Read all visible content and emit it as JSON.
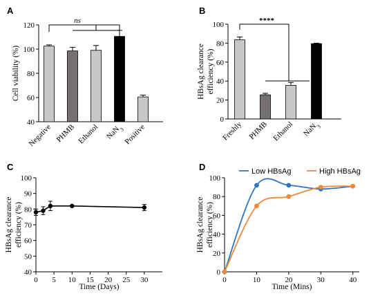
{
  "chart_data": [
    {
      "panel": "A",
      "type": "bar",
      "ylabel": "Cell viability (%)",
      "ylim": [
        40,
        120
      ],
      "yticks": [
        "40",
        "60",
        "80",
        "100",
        "120"
      ],
      "categories": [
        "Negative",
        "PHMB",
        "Ethanol",
        "NaN₃",
        "Positive"
      ],
      "values": [
        102.5,
        98.5,
        99,
        110.5,
        60.5
      ],
      "errors": [
        1,
        3,
        4,
        5,
        1.5
      ],
      "colors": [
        "#c8c8c8",
        "#777070",
        "#c8c8c8",
        "#000000",
        "#c8c8c8"
      ],
      "annotation": "ns"
    },
    {
      "panel": "B",
      "type": "bar",
      "ylabel": "HBsAg clearance efficiency (%)",
      "ylabel_lines": [
        "HBsAg clearance",
        "efficiency (%)"
      ],
      "ylim": [
        0,
        100
      ],
      "yticks": [
        "0",
        "20",
        "40",
        "60",
        "80",
        "100"
      ],
      "categories": [
        "Freshly",
        "PHMB",
        "Ethanol",
        "NaN₃"
      ],
      "values": [
        83.5,
        25.5,
        35.5,
        79.5
      ],
      "errors": [
        3,
        1.5,
        3,
        0.5
      ],
      "colors": [
        "#c8c8c8",
        "#777070",
        "#c8c8c8",
        "#000000"
      ],
      "annotation": "****"
    },
    {
      "panel": "C",
      "type": "line",
      "xlabel": "Time (Days)",
      "ylabel": "HBsAg clearance efficiency (%)",
      "ylabel_lines": [
        "HBsAg clearance",
        "efficiency (%)"
      ],
      "xlim": [
        0,
        35
      ],
      "ylim": [
        40,
        100
      ],
      "xticks": [
        "0",
        "5",
        "10",
        "15",
        "20",
        "25",
        "30"
      ],
      "yticks": [
        "40",
        "50",
        "60",
        "70",
        "80",
        "90",
        "100"
      ],
      "series": [
        {
          "x": [
            0,
            2,
            4,
            10,
            30
          ],
          "values": [
            78,
            79,
            82,
            82,
            81
          ],
          "errors": [
            2,
            2.5,
            3,
            0.5,
            2
          ]
        }
      ]
    },
    {
      "panel": "D",
      "type": "line",
      "xlabel": "Time (Mins)",
      "ylabel": "HBsAg clearance efficiency (%)",
      "ylabel_lines": [
        "HBsAg clearance",
        "efficiency (%)"
      ],
      "xlim": [
        0,
        42
      ],
      "ylim": [
        0,
        100
      ],
      "xticks": [
        "0",
        "10",
        "20",
        "30",
        "40"
      ],
      "yticks": [
        "0",
        "20",
        "40",
        "60",
        "80",
        "100"
      ],
      "legend": "top",
      "series": [
        {
          "name": "Low HBsAg",
          "color": "#2e75c0",
          "x": [
            0,
            10,
            20,
            30,
            40
          ],
          "values": [
            0,
            92,
            92,
            88,
            91
          ]
        },
        {
          "name": "High HBsAg",
          "color": "#f0883a",
          "x": [
            0,
            10,
            20,
            30,
            40
          ],
          "values": [
            0,
            70,
            80,
            90,
            91
          ]
        }
      ]
    }
  ],
  "panels": {
    "a": "A",
    "b": "B",
    "c": "C",
    "d": "D"
  }
}
